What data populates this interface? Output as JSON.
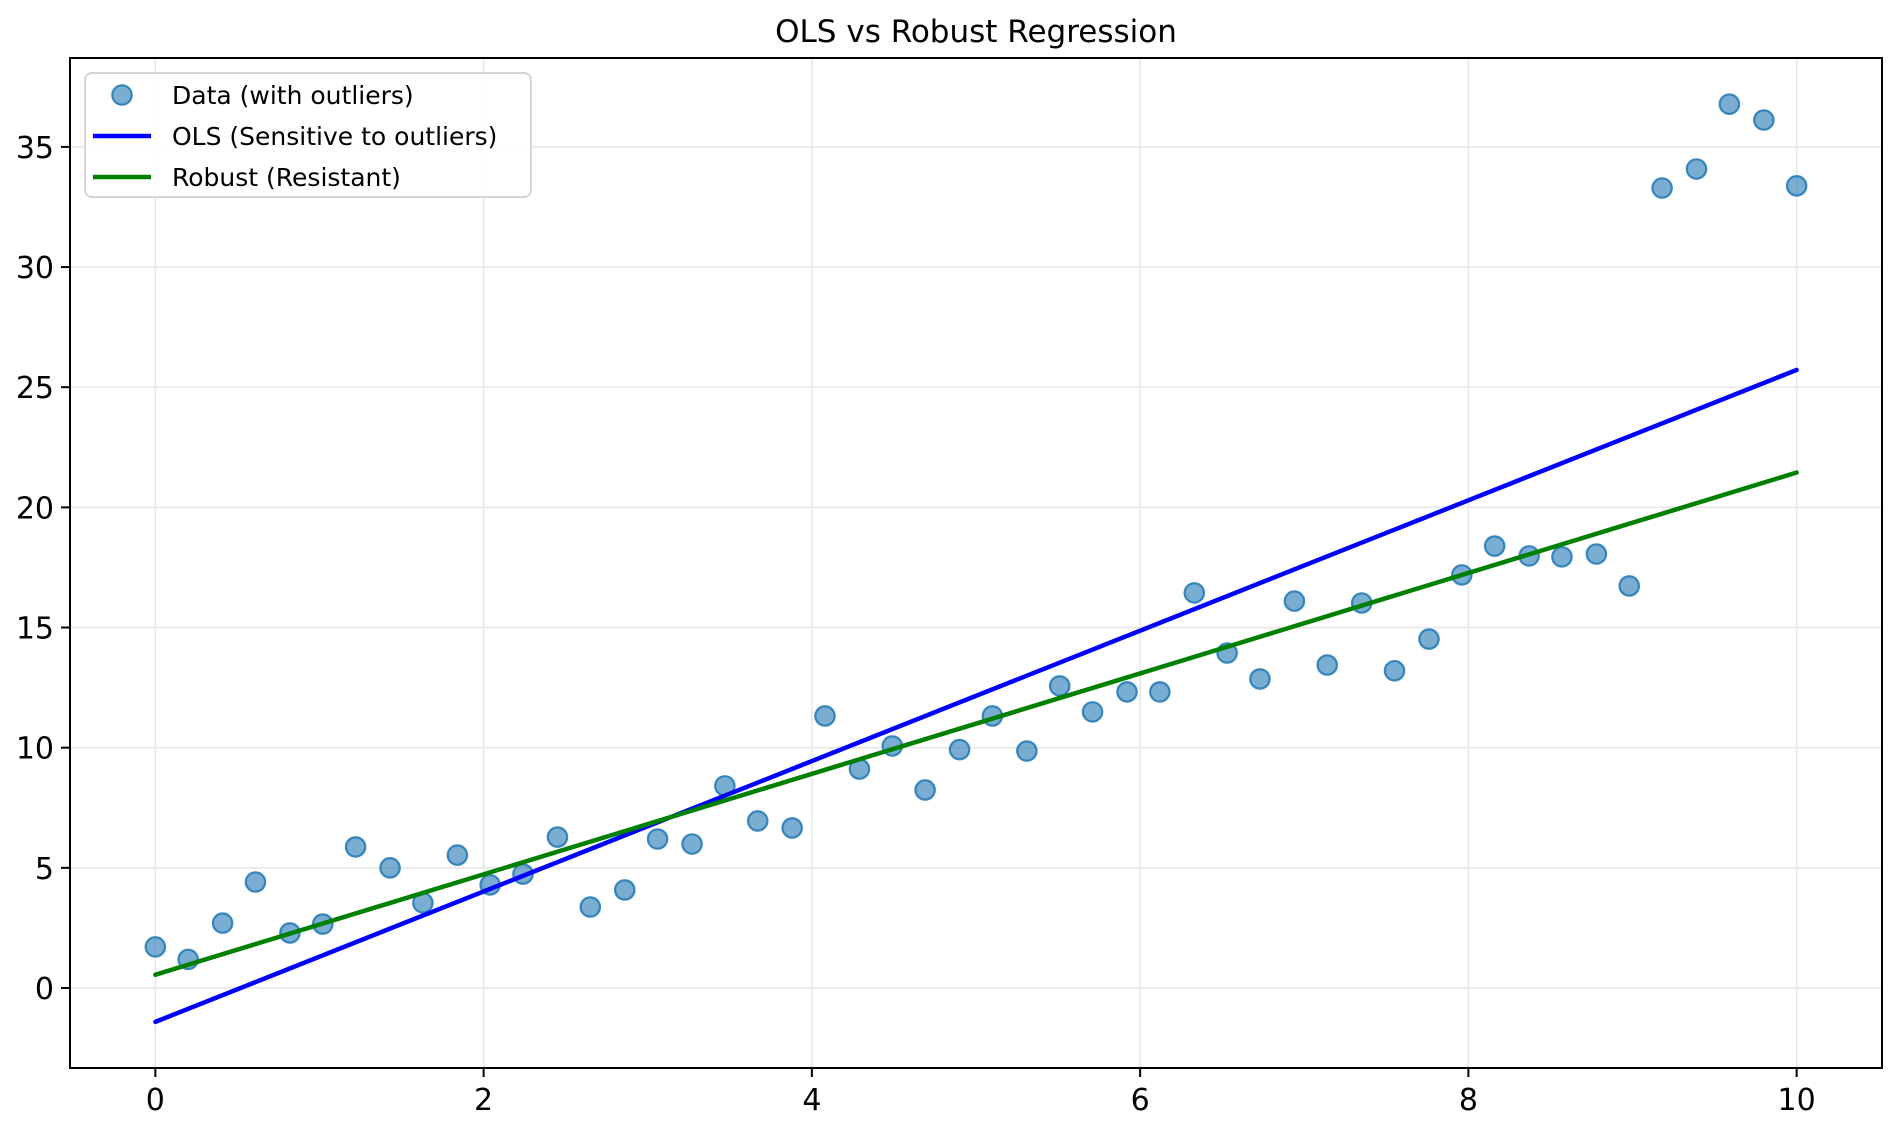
{
  "chart_data": {
    "type": "scatter",
    "title": "OLS vs Robust Regression",
    "xlabel": "",
    "ylabel": "",
    "xlim": [
      -0.52,
      10.52
    ],
    "ylim": [
      -3.33,
      38.7
    ],
    "xticks": [
      0,
      2,
      4,
      6,
      8,
      10
    ],
    "yticks": [
      0,
      5,
      10,
      15,
      20,
      25,
      30,
      35
    ],
    "grid": true,
    "legend_position": "upper-left",
    "colors": {
      "grid": "#e7e7e7",
      "axis": "#000000",
      "text": "#000000",
      "background": "#ffffff"
    },
    "series": [
      {
        "type": "scatter",
        "label": "Data (with outliers)",
        "color": "#1f77b4",
        "fill_opacity": 0.6,
        "edge_opacity": 0.85,
        "x": [
          0,
          0.2,
          0.41,
          0.61,
          0.82,
          1.02,
          1.22,
          1.43,
          1.63,
          1.84,
          2.04,
          2.24,
          2.45,
          2.65,
          2.86,
          3.06,
          3.27,
          3.47,
          3.67,
          3.88,
          4.08,
          4.29,
          4.49,
          4.69,
          4.9,
          5.1,
          5.31,
          5.51,
          5.71,
          5.92,
          6.12,
          6.33,
          6.53,
          6.73,
          6.94,
          7.14,
          7.35,
          7.55,
          7.76,
          7.96,
          8.16,
          8.37,
          8.57,
          8.78,
          8.98,
          9.18,
          9.39,
          9.59,
          9.8,
          10
        ],
        "y": [
          1.71,
          1.19,
          2.7,
          4.41,
          2.29,
          2.66,
          5.87,
          5.0,
          3.54,
          5.53,
          4.29,
          4.74,
          6.28,
          3.37,
          4.08,
          6.2,
          5.99,
          8.41,
          6.95,
          6.66,
          11.32,
          9.11,
          10.07,
          8.24,
          9.92,
          11.32,
          9.86,
          12.57,
          11.49,
          12.32,
          12.32,
          16.44,
          13.94,
          12.86,
          16.1,
          13.44,
          16.02,
          13.2,
          14.52,
          17.19,
          18.39,
          17.98,
          17.94,
          18.06,
          16.73,
          33.29,
          34.08,
          36.78,
          36.12,
          33.38
        ]
      },
      {
        "type": "line",
        "label": "OLS (Sensitive to outliers)",
        "color": "#0000ff",
        "x": [
          0,
          10
        ],
        "y": [
          -1.41,
          25.72
        ]
      },
      {
        "type": "line",
        "label": "Robust (Resistant)",
        "color": "#008000",
        "x": [
          0,
          10
        ],
        "y": [
          0.55,
          21.45
        ]
      }
    ]
  }
}
